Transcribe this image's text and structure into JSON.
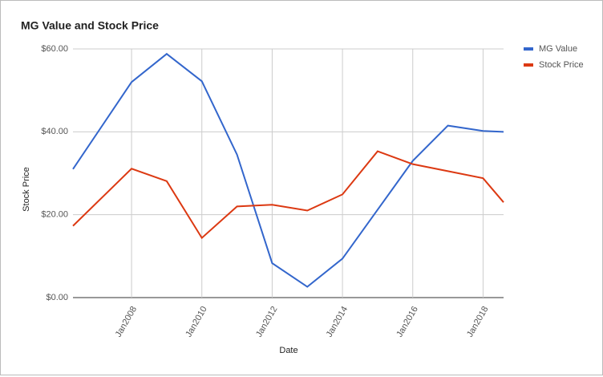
{
  "chart_data": {
    "type": "line",
    "title": "MG Value and Stock Price",
    "x_label": "Date",
    "y_label": "Stock Price",
    "x": [
      "2006-05",
      "2008-01",
      "2009-01",
      "2010-01",
      "2011-01",
      "2012-01",
      "2013-01",
      "2014-01",
      "2015-01",
      "2016-01",
      "2017-01",
      "2018-01",
      "2018-08"
    ],
    "series": [
      {
        "name": "MG Value",
        "color": "#3366cc",
        "values": [
          31,
          52,
          58.8,
          52.2,
          34.5,
          8.3,
          2.6,
          9.4,
          21.2,
          33,
          41.5,
          40.2,
          40
        ]
      },
      {
        "name": "Stock Price",
        "color": "#dc3912",
        "values": [
          17.3,
          31.1,
          28.1,
          14.4,
          22,
          22.4,
          21,
          24.9,
          35.3,
          32.2,
          30.5,
          28.8,
          23
        ]
      }
    ],
    "xlim": [
      "2006-05",
      "2018-08"
    ],
    "xticks": [
      {
        "value": "2008-01",
        "label": "Jan2008"
      },
      {
        "value": "2010-01",
        "label": "Jan2010"
      },
      {
        "value": "2012-01",
        "label": "Jan2012"
      },
      {
        "value": "2014-01",
        "label": "Jan2014"
      },
      {
        "value": "2016-01",
        "label": "Jan2016"
      },
      {
        "value": "2018-01",
        "label": "Jan2018"
      }
    ],
    "ylim": [
      0,
      60
    ],
    "yticks": [
      {
        "value": 0,
        "label": "$0.00"
      },
      {
        "value": 20,
        "label": "$20.00"
      },
      {
        "value": 40,
        "label": "$40.00"
      },
      {
        "value": 60,
        "label": "$60.00"
      }
    ],
    "grid": true,
    "legend": "right"
  }
}
